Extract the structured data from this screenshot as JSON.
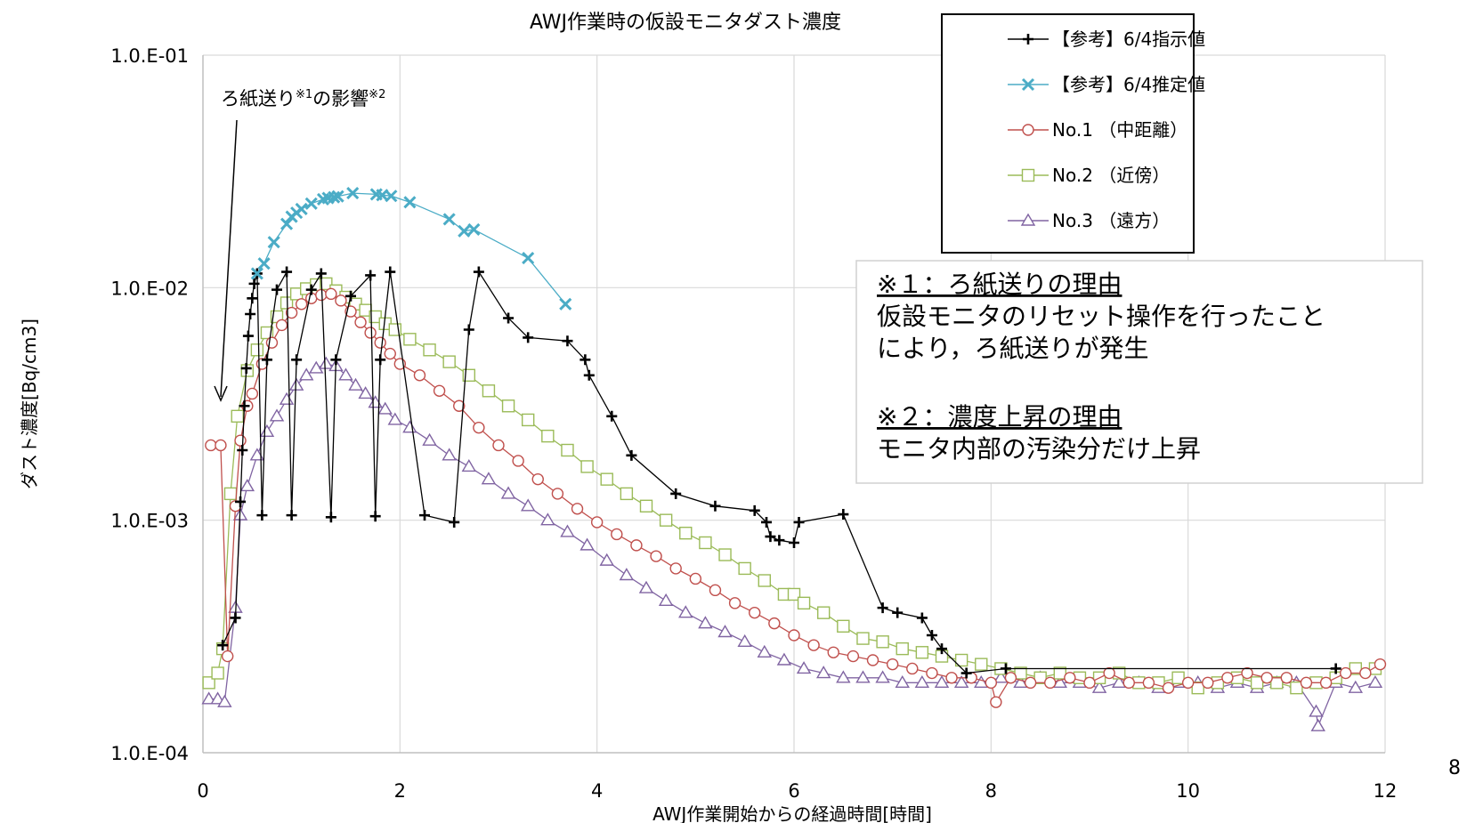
{
  "page_number": "8",
  "annotation": {
    "text": "ろ紙送り",
    "sup1": "※1",
    "mid": "の影響",
    "sup2": "※2"
  },
  "note_box": {
    "heading1": "※１：ろ紙送りの理由",
    "line1": "仮設モニタのリセット操作を行ったこと",
    "line2": "により，ろ紙送りが発生",
    "heading2": "※２：濃度上昇の理由",
    "line3": "モニタ内部の汚染分だけ上昇"
  },
  "chart_data": {
    "type": "scatter",
    "title": "AWJ作業時の仮設モニタダスト濃度",
    "xlabel": "AWJ作業開始からの経過時間[時間]",
    "ylabel": "ダスト濃度[Bq/cm3]",
    "xlim": [
      0,
      12
    ],
    "ylim": [
      0.0001,
      0.1
    ],
    "yscale": "log",
    "grid": true,
    "legend_position": "top-right",
    "x_ticks": [
      0,
      2,
      4,
      6,
      8,
      10,
      12
    ],
    "x_tick_labels": [
      "0",
      "2",
      "4",
      "6",
      "8",
      "10",
      "12"
    ],
    "y_ticks": [
      0.0001,
      0.001,
      0.01,
      0.1
    ],
    "y_tick_labels": [
      "1.0.E-04",
      "1.0.E-03",
      "1.0.E-02",
      "1.0.E-01"
    ],
    "series": [
      {
        "name": "【参考】6/4指示値",
        "color": "#000000",
        "marker": "plus",
        "x": [
          0.2,
          0.33,
          0.38,
          0.4,
          0.42,
          0.44,
          0.46,
          0.48,
          0.5,
          0.52,
          0.55,
          0.6,
          0.65,
          0.75,
          0.85,
          0.9,
          0.95,
          1.1,
          1.2,
          1.3,
          1.35,
          1.5,
          1.7,
          1.75,
          1.8,
          1.9,
          2.25,
          2.55,
          2.7,
          2.8,
          3.1,
          3.3,
          3.7,
          3.88,
          3.92,
          4.15,
          4.35,
          4.8,
          5.2,
          5.6,
          5.72,
          5.76,
          5.85,
          6.0,
          6.05,
          6.5,
          6.9,
          7.05,
          7.3,
          7.4,
          7.5,
          7.75,
          8.15,
          11.5
        ],
        "y": [
          0.00029,
          0.00038,
          0.0012,
          0.002,
          0.0031,
          0.0045,
          0.0062,
          0.0077,
          0.009,
          0.0104,
          0.0115,
          0.00105,
          0.0049,
          0.0098,
          0.0117,
          0.00105,
          0.0049,
          0.0098,
          0.0115,
          0.00103,
          0.0049,
          0.0092,
          0.0113,
          0.00104,
          0.0049,
          0.0117,
          0.00105,
          0.00098,
          0.0066,
          0.0117,
          0.0074,
          0.0061,
          0.0059,
          0.0049,
          0.0042,
          0.0028,
          0.0019,
          0.0013,
          0.00115,
          0.0011,
          0.00098,
          0.00085,
          0.00082,
          0.0008,
          0.00098,
          0.00106,
          0.00042,
          0.0004,
          0.00038,
          0.00032,
          0.00028,
          0.00022,
          0.00023,
          0.00023
        ]
      },
      {
        "name": "【参考】6/4推定値",
        "color": "#4BACC6",
        "marker": "x",
        "x": [
          0.55,
          0.62,
          0.72,
          0.85,
          0.9,
          0.95,
          1.0,
          1.1,
          1.22,
          1.27,
          1.33,
          1.37,
          1.52,
          1.76,
          1.82,
          1.91,
          2.1,
          2.5,
          2.65,
          2.75,
          3.3,
          3.68
        ],
        "y": [
          0.0115,
          0.0127,
          0.0157,
          0.0188,
          0.0202,
          0.021,
          0.0218,
          0.023,
          0.024,
          0.0243,
          0.0245,
          0.0247,
          0.0255,
          0.0252,
          0.025,
          0.0248,
          0.0233,
          0.0197,
          0.0175,
          0.0178,
          0.0134,
          0.0085
        ]
      },
      {
        "name": "No.1 （中距離）",
        "color": "#C0504D",
        "marker": "circle",
        "x": [
          0.08,
          0.18,
          0.25,
          0.33,
          0.38,
          0.45,
          0.5,
          0.6,
          0.7,
          0.8,
          0.9,
          1.0,
          1.1,
          1.2,
          1.3,
          1.4,
          1.5,
          1.6,
          1.7,
          1.8,
          1.9,
          2.0,
          2.2,
          2.4,
          2.6,
          2.8,
          3.0,
          3.2,
          3.4,
          3.6,
          3.8,
          4.0,
          4.2,
          4.4,
          4.6,
          4.8,
          5.0,
          5.2,
          5.4,
          5.6,
          5.8,
          6.0,
          6.2,
          6.4,
          6.6,
          6.8,
          7.0,
          7.2,
          7.4,
          7.6,
          7.8,
          8.0,
          8.05,
          8.2,
          8.4,
          8.6,
          8.8,
          9.0,
          9.2,
          9.4,
          9.6,
          9.8,
          10.0,
          10.2,
          10.4,
          10.6,
          10.8,
          11.0,
          11.2,
          11.4,
          11.6,
          11.8,
          11.95
        ],
        "y": [
          0.0021,
          0.0021,
          0.00026,
          0.00115,
          0.0022,
          0.0031,
          0.0035,
          0.0047,
          0.0058,
          0.0069,
          0.0078,
          0.0085,
          0.009,
          0.0093,
          0.0094,
          0.0088,
          0.0079,
          0.0071,
          0.0064,
          0.0058,
          0.0052,
          0.0047,
          0.0042,
          0.0036,
          0.0031,
          0.0025,
          0.0021,
          0.0018,
          0.0015,
          0.0013,
          0.00112,
          0.00098,
          0.00087,
          0.00078,
          0.0007,
          0.00062,
          0.00056,
          0.0005,
          0.00044,
          0.0004,
          0.00036,
          0.00032,
          0.00029,
          0.00027,
          0.00026,
          0.00025,
          0.00024,
          0.00023,
          0.00022,
          0.00021,
          0.00021,
          0.0002,
          0.000165,
          0.00021,
          0.0002,
          0.0002,
          0.00021,
          0.0002,
          0.00022,
          0.0002,
          0.0002,
          0.00019,
          0.0002,
          0.0002,
          0.00021,
          0.00022,
          0.00021,
          0.00021,
          0.0002,
          0.0002,
          0.00022,
          0.00022,
          0.00024
        ]
      },
      {
        "name": "No.2 （近傍）",
        "color": "#9BBB59",
        "marker": "square",
        "x": [
          0.06,
          0.15,
          0.2,
          0.28,
          0.35,
          0.45,
          0.55,
          0.65,
          0.75,
          0.85,
          0.95,
          1.05,
          1.15,
          1.25,
          1.35,
          1.45,
          1.55,
          1.65,
          1.75,
          1.85,
          1.95,
          2.1,
          2.3,
          2.5,
          2.7,
          2.9,
          3.1,
          3.3,
          3.5,
          3.7,
          3.9,
          4.1,
          4.3,
          4.5,
          4.7,
          4.9,
          5.1,
          5.3,
          5.5,
          5.7,
          5.9,
          6.0,
          6.1,
          6.3,
          6.5,
          6.7,
          6.9,
          7.1,
          7.3,
          7.5,
          7.7,
          7.9,
          8.1,
          8.3,
          8.5,
          8.7,
          8.9,
          9.1,
          9.3,
          9.5,
          9.7,
          9.9,
          10.1,
          10.3,
          10.5,
          10.7,
          10.9,
          11.1,
          11.3,
          11.5,
          11.7,
          11.9
        ],
        "y": [
          0.0002,
          0.00022,
          0.00028,
          0.0013,
          0.0028,
          0.0044,
          0.0054,
          0.0064,
          0.0075,
          0.0086,
          0.0094,
          0.0099,
          0.0103,
          0.0104,
          0.0097,
          0.0091,
          0.0085,
          0.008,
          0.0075,
          0.007,
          0.0066,
          0.006,
          0.0054,
          0.0048,
          0.0042,
          0.0036,
          0.0031,
          0.0027,
          0.0023,
          0.002,
          0.0017,
          0.0015,
          0.0013,
          0.00115,
          0.001,
          0.00088,
          0.0008,
          0.00071,
          0.00062,
          0.00055,
          0.00048,
          0.00048,
          0.00044,
          0.0004,
          0.00035,
          0.00031,
          0.0003,
          0.00028,
          0.00027,
          0.00026,
          0.00025,
          0.00024,
          0.00023,
          0.00022,
          0.00021,
          0.00022,
          0.00021,
          0.00021,
          0.00022,
          0.0002,
          0.0002,
          0.00021,
          0.00019,
          0.0002,
          0.00021,
          0.0002,
          0.0002,
          0.00019,
          0.0002,
          0.00021,
          0.00023,
          0.00023
        ]
      },
      {
        "name": "No.3 （遠方）",
        "color": "#8064A2",
        "marker": "triangle",
        "x": [
          0.06,
          0.15,
          0.22,
          0.33,
          0.38,
          0.45,
          0.55,
          0.65,
          0.75,
          0.85,
          0.95,
          1.05,
          1.15,
          1.25,
          1.35,
          1.45,
          1.55,
          1.65,
          1.75,
          1.85,
          1.95,
          2.1,
          2.3,
          2.5,
          2.7,
          2.9,
          3.1,
          3.3,
          3.5,
          3.7,
          3.9,
          4.1,
          4.3,
          4.5,
          4.7,
          4.9,
          5.1,
          5.3,
          5.5,
          5.7,
          5.9,
          6.1,
          6.3,
          6.5,
          6.7,
          6.9,
          7.1,
          7.3,
          7.5,
          7.7,
          7.9,
          8.1,
          8.3,
          8.5,
          8.7,
          8.9,
          9.1,
          9.3,
          9.5,
          9.7,
          9.9,
          10.1,
          10.3,
          10.5,
          10.7,
          10.9,
          11.1,
          11.3,
          11.32,
          11.5,
          11.7,
          11.9
        ],
        "y": [
          0.00017,
          0.00017,
          0.000165,
          0.00042,
          0.00105,
          0.0014,
          0.0019,
          0.0024,
          0.0028,
          0.0033,
          0.0038,
          0.0042,
          0.0045,
          0.0047,
          0.0046,
          0.0042,
          0.0038,
          0.0035,
          0.0032,
          0.003,
          0.0027,
          0.0025,
          0.0022,
          0.0019,
          0.0017,
          0.0015,
          0.0013,
          0.00115,
          0.001,
          0.00089,
          0.00078,
          0.00067,
          0.00058,
          0.00051,
          0.00045,
          0.0004,
          0.00036,
          0.00033,
          0.0003,
          0.00027,
          0.00025,
          0.00023,
          0.00022,
          0.00021,
          0.00021,
          0.00021,
          0.0002,
          0.0002,
          0.0002,
          0.0002,
          0.0002,
          0.00021,
          0.0002,
          0.00021,
          0.0002,
          0.0002,
          0.00019,
          0.0002,
          0.0002,
          0.00019,
          0.0002,
          0.0002,
          0.00019,
          0.0002,
          0.00019,
          0.0002,
          0.0002,
          0.00015,
          0.00013,
          0.0002,
          0.00019,
          0.0002
        ]
      }
    ]
  }
}
